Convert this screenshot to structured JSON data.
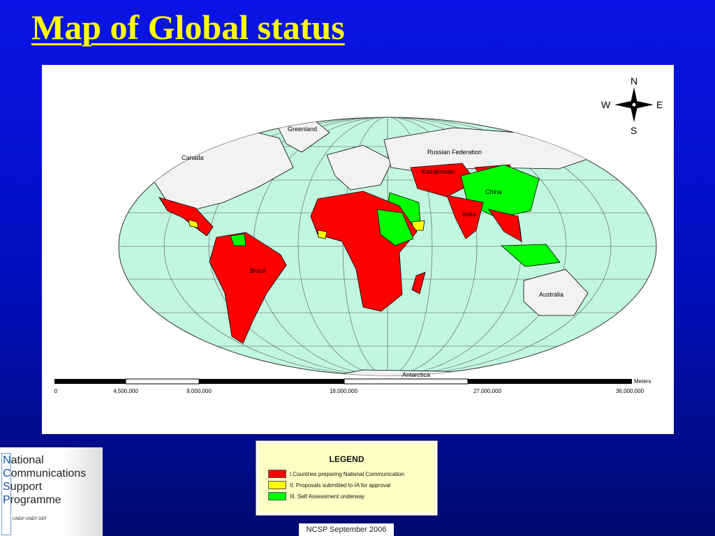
{
  "title": "Map of Global status",
  "map": {
    "labels": {
      "greenland": "Greenland",
      "canada": "Canada",
      "russia": "Russian Federation",
      "kazakhstan": "Kazakhstan",
      "china": "China",
      "india": "India",
      "brazil": "Brazil",
      "australia": "Australia",
      "antarctica": "Antarctica"
    },
    "compass": {
      "n": "N",
      "s": "S",
      "e": "E",
      "w": "W"
    },
    "scale": {
      "unit": "Meters",
      "ticks": [
        "0",
        "4,500,000",
        "9,000,000",
        "18,000,000",
        "27,000,000",
        "36,000,000"
      ]
    },
    "colors": {
      "ocean": "#c2f7df",
      "land": "#f2f2f2",
      "category_1": "#ff0000",
      "category_2": "#ffff00",
      "category_3": "#00ff00"
    }
  },
  "legend": {
    "title": "LEGEND",
    "items": [
      {
        "label": "I.Countries preparing National Communication",
        "color": "#ff0000"
      },
      {
        "label": "II. Proposals submitted to IA for approval",
        "color": "#ffff00"
      },
      {
        "label": "III. Self Assessment underway",
        "color": "#00ff00"
      }
    ]
  },
  "footer": "NCSP September 2006",
  "logo": {
    "lines": [
      [
        "N",
        "ational"
      ],
      [
        "C",
        "ommunications"
      ],
      [
        "S",
        "upport"
      ],
      [
        "P",
        "rogramme"
      ]
    ],
    "agencies": "UNDP UNEP GEF"
  }
}
